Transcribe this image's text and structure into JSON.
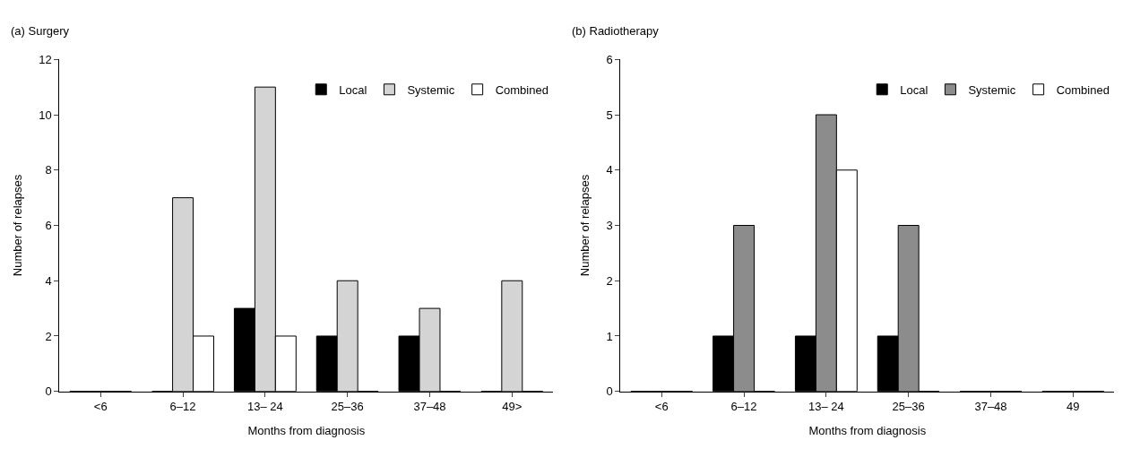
{
  "chart_data": [
    {
      "type": "bar",
      "title": "(a) Surgery",
      "xlabel": "Months from diagnosis",
      "ylabel": "Number of relapses",
      "categories": [
        "<6",
        "6–12",
        "13– 24",
        "25–36",
        "37–48",
        "49>"
      ],
      "series": [
        {
          "name": "Local",
          "color": "#000000",
          "values": [
            0,
            0,
            3,
            2,
            2,
            0
          ]
        },
        {
          "name": "Systemic",
          "color": "#d4d4d4",
          "values": [
            0,
            7,
            11,
            4,
            3,
            4
          ]
        },
        {
          "name": "Combined",
          "color": "#ffffff",
          "values": [
            0,
            2,
            2,
            0,
            0,
            0
          ]
        }
      ],
      "ylim": [
        0,
        12
      ],
      "yticks": [
        0,
        2,
        4,
        6,
        8,
        10,
        12
      ],
      "legend": "top right"
    },
    {
      "type": "bar",
      "title": "(b) Radiotherapy",
      "xlabel": "Months from diagnosis",
      "ylabel": "Number of relapses",
      "categories": [
        "<6",
        "6–12",
        "13– 24",
        "25–36",
        "37–48",
        "49"
      ],
      "series": [
        {
          "name": "Local",
          "color": "#000000",
          "values": [
            0,
            1,
            1,
            1,
            0,
            0
          ]
        },
        {
          "name": "Systemic",
          "color": "#8c8c8c",
          "values": [
            0,
            3,
            5,
            3,
            0,
            0
          ]
        },
        {
          "name": "Combined",
          "color": "#ffffff",
          "values": [
            0,
            0,
            4,
            0,
            0,
            0
          ]
        }
      ],
      "ylim": [
        0,
        6
      ],
      "yticks": [
        0,
        1,
        2,
        3,
        4,
        5,
        6
      ],
      "legend": "top right"
    }
  ]
}
